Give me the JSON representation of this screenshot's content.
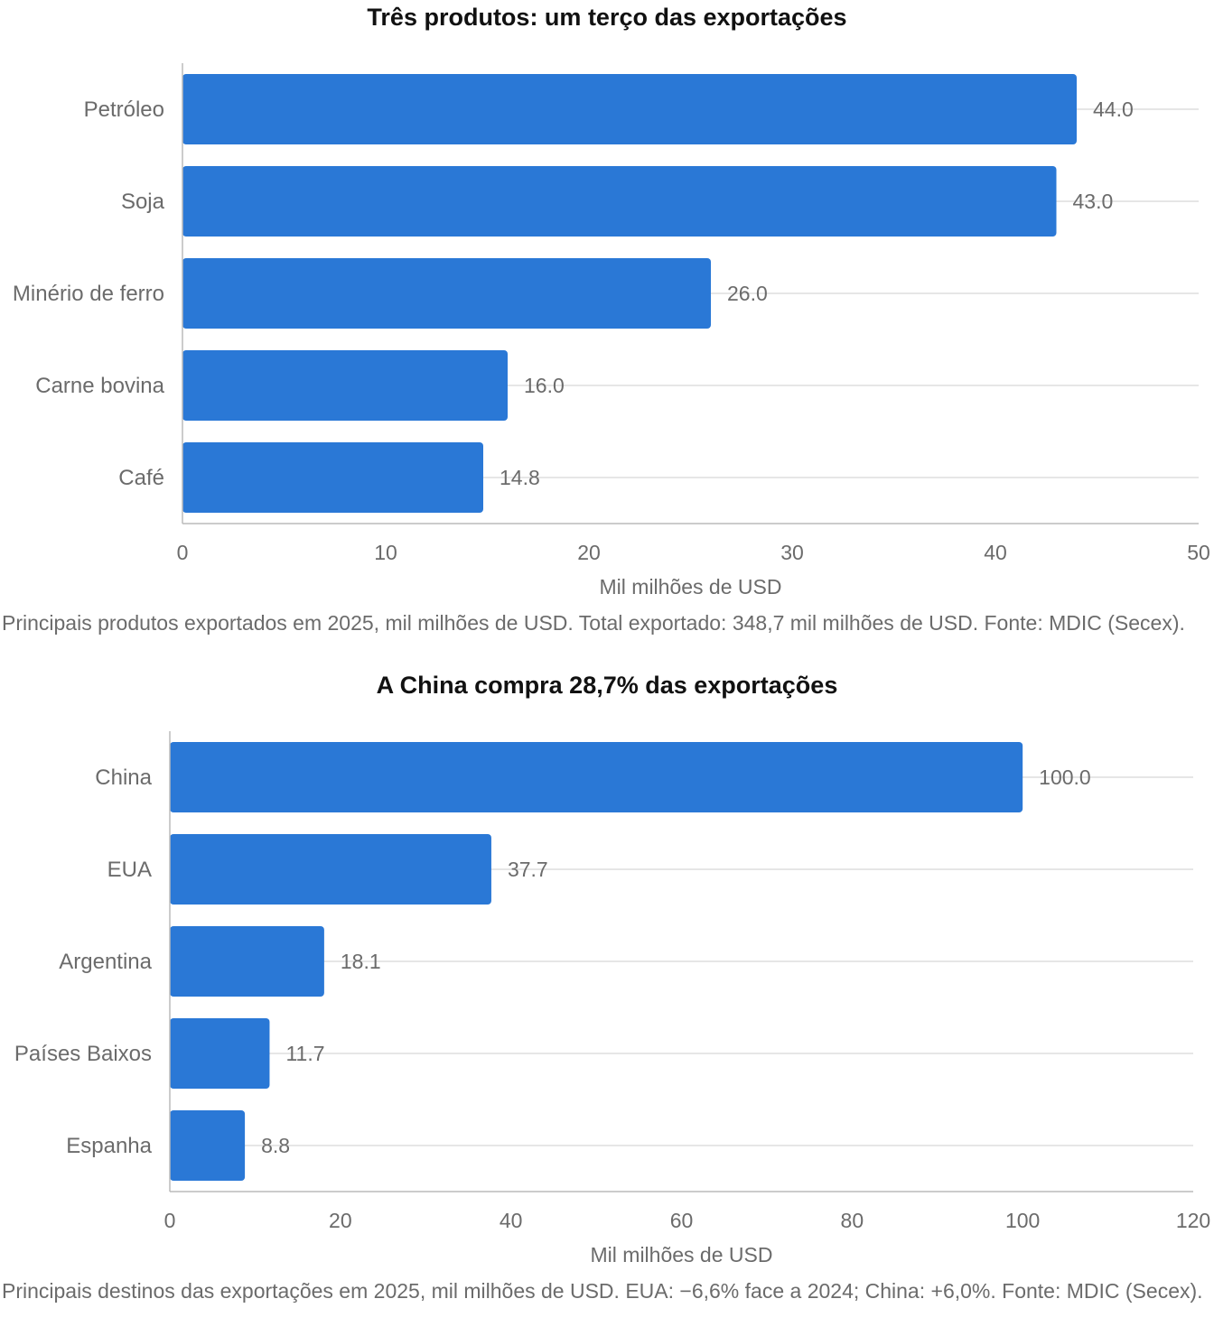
{
  "chart_data": [
    {
      "type": "bar",
      "orientation": "horizontal",
      "title": "Três produtos: um terço das exportações",
      "categories": [
        "Petróleo",
        "Soja",
        "Minério de ferro",
        "Carne bovina",
        "Café"
      ],
      "values": [
        44.0,
        43.0,
        26.0,
        16.0,
        14.8
      ],
      "value_labels": [
        "44.0",
        "43.0",
        "26.0",
        "16.0",
        "14.8"
      ],
      "xlabel": "Mil milhões de USD",
      "ylabel": "",
      "xlim": [
        0,
        50
      ],
      "xticks": [
        "0",
        "10",
        "20",
        "30",
        "40",
        "50"
      ],
      "grid": "horizontal lines at categories",
      "caption": "Principais produtos exportados em 2025, mil milhões de USD. Total exportado: 348,7 mil milhões de USD. Fonte: MDIC (Secex).",
      "colors": {
        "bar": "#2a78d6",
        "axis": "#bbbbbb",
        "grid": "#dddddd",
        "label": "#6b6b6b"
      }
    },
    {
      "type": "bar",
      "orientation": "horizontal",
      "title": "A China compra 28,7% das exportações",
      "categories": [
        "China",
        "EUA",
        "Argentina",
        "Países Baixos",
        "Espanha"
      ],
      "values": [
        100.0,
        37.7,
        18.1,
        11.7,
        8.8
      ],
      "value_labels": [
        "100.0",
        "37.7",
        "18.1",
        "11.7",
        "8.8"
      ],
      "xlabel": "Mil milhões de USD",
      "ylabel": "",
      "xlim": [
        0,
        120
      ],
      "xticks": [
        "0",
        "20",
        "40",
        "60",
        "80",
        "100",
        "120"
      ],
      "grid": "horizontal lines at categories",
      "caption": "Principais destinos das exportações em 2025, mil milhões de USD. EUA: −6,6% face a 2024; China: +6,0%. Fonte: MDIC (Secex).",
      "colors": {
        "bar": "#2a78d6",
        "axis": "#bbbbbb",
        "grid": "#dddddd",
        "label": "#6b6b6b"
      }
    }
  ]
}
